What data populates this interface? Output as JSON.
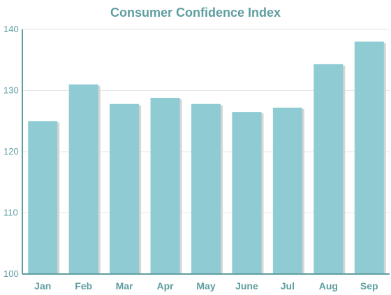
{
  "chart_data": {
    "type": "bar",
    "title": "Consumer Confidence Index",
    "xlabel": "",
    "ylabel": "",
    "categories": [
      "Jan",
      "Feb",
      "Mar",
      "Apr",
      "May",
      "June",
      "Jul",
      "Aug",
      "Sep"
    ],
    "values": [
      125.0,
      131.0,
      127.8,
      128.8,
      127.8,
      126.5,
      127.2,
      134.3,
      138.0
    ],
    "y_ticks": [
      100,
      110,
      120,
      130,
      140
    ],
    "ylim": [
      100,
      140
    ],
    "y_scale": "linear",
    "grid": true,
    "legend": "none",
    "colors": {
      "bar": "#8ecbd3",
      "bar_shadow": "#d5d5d5",
      "axis": "#5f9ea0",
      "grid": "#e6e6e6",
      "text": "#5f9ea0"
    }
  }
}
